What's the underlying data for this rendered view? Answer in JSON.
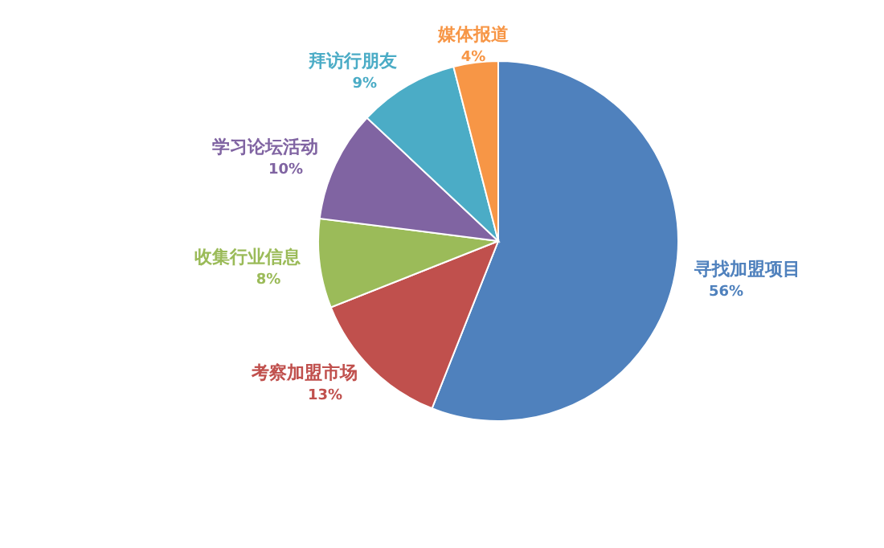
{
  "chart_data": {
    "type": "pie",
    "categories": [
      "寻找加盟项目",
      "考察加盟市场",
      "收集行业信息",
      "学习论坛活动",
      "拜访行朋友",
      "媒体报道"
    ],
    "values": [
      56,
      13,
      8,
      10,
      9,
      4
    ],
    "colors": [
      "#4f81bd",
      "#c0504d",
      "#9bbb59",
      "#8064a2",
      "#4bacc6",
      "#f79646"
    ],
    "value_labels": [
      "56%",
      "13%",
      "8%",
      "10%",
      "9%",
      "4%"
    ]
  }
}
